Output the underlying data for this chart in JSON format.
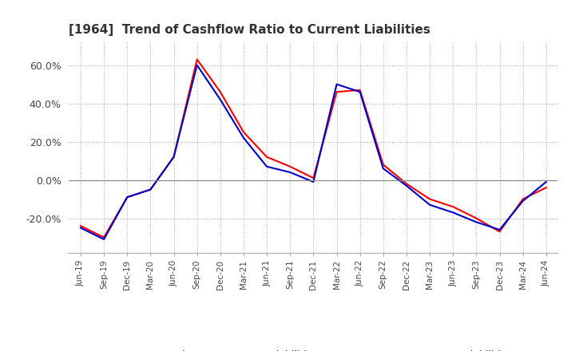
{
  "title": "[1964]  Trend of Cashflow Ratio to Current Liabilities",
  "title_fontsize": 11,
  "background_color": "#ffffff",
  "grid_color": "#aaaaaa",
  "x_labels": [
    "Jun-19",
    "Sep-19",
    "Dec-19",
    "Mar-20",
    "Jun-20",
    "Sep-20",
    "Dec-20",
    "Mar-21",
    "Jun-21",
    "Sep-21",
    "Dec-21",
    "Mar-22",
    "Jun-22",
    "Sep-22",
    "Dec-22",
    "Mar-23",
    "Jun-23",
    "Sep-23",
    "Dec-23",
    "Mar-24",
    "Jun-24"
  ],
  "operating_cf": [
    -0.24,
    -0.3,
    -0.09,
    -0.05,
    0.12,
    0.63,
    0.46,
    0.25,
    0.12,
    0.07,
    0.01,
    0.46,
    0.47,
    0.08,
    -0.02,
    -0.1,
    -0.14,
    -0.2,
    -0.27,
    -0.1,
    -0.04
  ],
  "free_cf": [
    -0.25,
    -0.31,
    -0.09,
    -0.05,
    0.12,
    0.6,
    0.42,
    0.22,
    0.07,
    0.04,
    -0.01,
    0.5,
    0.46,
    0.06,
    -0.03,
    -0.13,
    -0.17,
    -0.22,
    -0.26,
    -0.11,
    -0.01
  ],
  "operating_color": "#ff0000",
  "free_color": "#0000cc",
  "ylim": [
    -0.38,
    0.72
  ],
  "yticks": [
    -0.2,
    0.0,
    0.2,
    0.4,
    0.6
  ],
  "legend_labels": [
    "Operating CF to Current Liabilities",
    "Free CF to Current Liabilities"
  ]
}
